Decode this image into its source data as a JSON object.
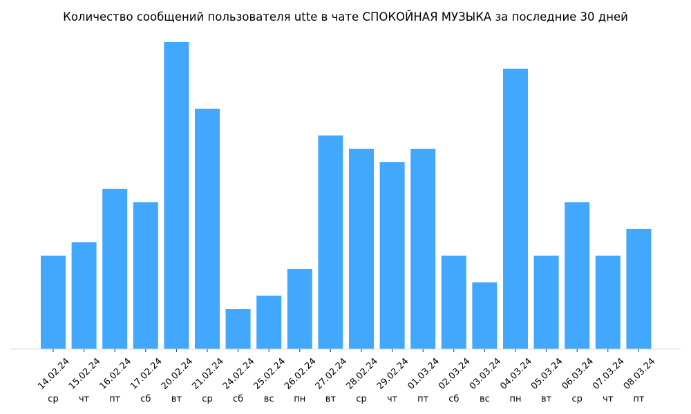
{
  "chart_data": {
    "type": "bar",
    "title": "Количество сообщений пользователя utte в чате СПОКОЙНАЯ МУЗЫКА за последние 30 дней",
    "xlabel": "",
    "ylabel": "",
    "categories": [
      "14.02.24",
      "15.02.24",
      "16.02.24",
      "17.02.24",
      "20.02.24",
      "21.02.24",
      "24.02.24",
      "25.02.24",
      "26.02.24",
      "27.02.24",
      "28.02.24",
      "29.02.24",
      "01.03.24",
      "02.03.24",
      "03.03.24",
      "04.03.24",
      "05.03.24",
      "06.03.24",
      "07.03.24",
      "08.03.24"
    ],
    "weekdays": [
      "ср",
      "чт",
      "пт",
      "сб",
      "вт",
      "ср",
      "сб",
      "вс",
      "пн",
      "вт",
      "ср",
      "чт",
      "пт",
      "сб",
      "вс",
      "пн",
      "вт",
      "ср",
      "чт",
      "пт"
    ],
    "values": [
      7,
      8,
      12,
      11,
      23,
      18,
      3,
      4,
      6,
      16,
      15,
      14,
      15,
      7,
      5,
      21,
      7,
      11,
      7,
      9
    ],
    "ylim": [
      0,
      23
    ],
    "bar_color": "#42a8fe",
    "baseline_color": "#dddddd",
    "grid": false,
    "legend": "none"
  }
}
